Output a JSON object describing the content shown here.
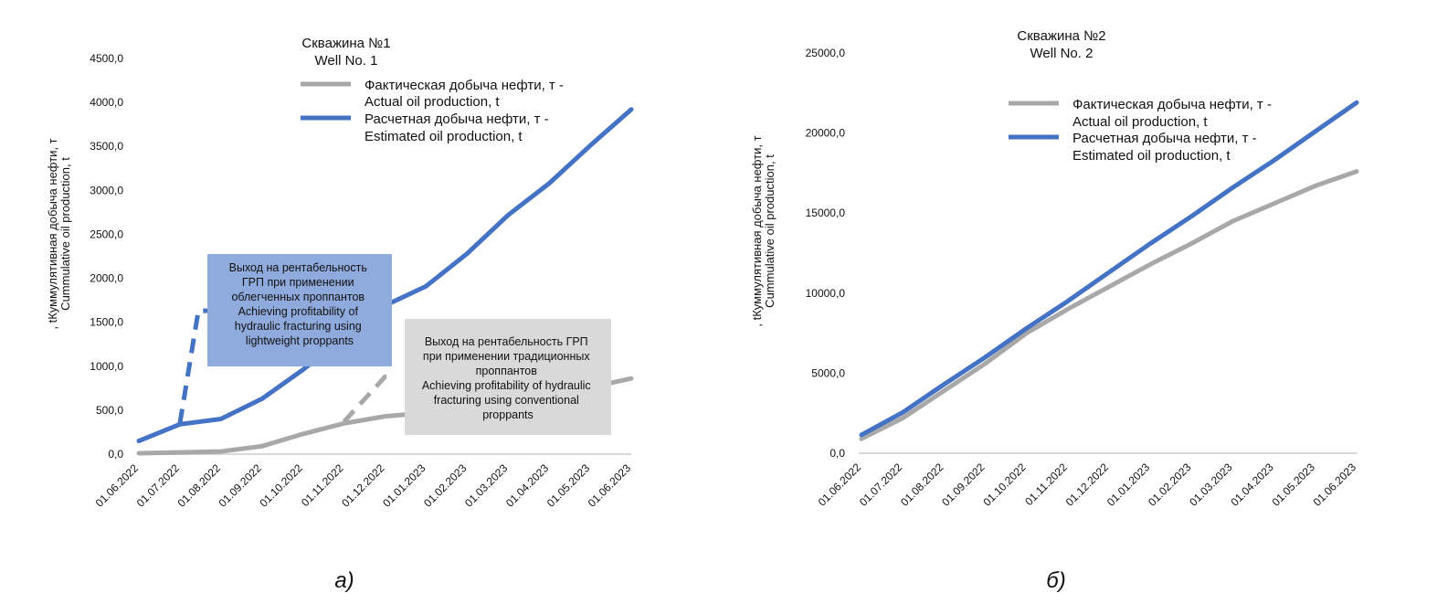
{
  "colors": {
    "actual": "#a8a8a8",
    "estimated": "#4472c4",
    "box_light": "#8faadc",
    "box_conv": "#d9d9d9",
    "baseline": "#d9d9d9"
  },
  "panel_a": {
    "caption": "а)",
    "title_line1": "Скважина №1",
    "title_line2": "Well No. 1",
    "legend": {
      "actual_line1": "Фактическая добыча нефти, т -",
      "actual_line2": "Actual oil production, t",
      "estimated_line1": "Расчетная добыча нефти, т -",
      "estimated_line2": "Estimated oil production, t"
    },
    "ylabel_line1": ", tКуммулятивная добыча нефти, т",
    "ylabel_line2": "Cummulative oil production, t",
    "annotation_light": [
      "Выход на рентабельность",
      "ГРП при применении",
      "облегченных проппантов",
      "Achieving profitability of",
      "hydraulic fracturing using",
      "lightweight proppants"
    ],
    "annotation_conv": [
      "Выход на рентабельность ГРП",
      "при применении традиционных",
      "проппантов",
      "Achieving profitability of hydraulic",
      "fracturing using conventional",
      "proppants"
    ]
  },
  "panel_b": {
    "caption": "б)",
    "title_line1": "Скважина №2",
    "title_line2": "Well No. 2",
    "legend": {
      "actual_line1": "Фактическая добыча нефти, т -",
      "actual_line2": "Actual oil production, t",
      "estimated_line1": "Расчетная добыча нефти, т -",
      "estimated_line2": "Estimated oil production, t"
    },
    "ylabel_line1": ", tКуммулятивная добыча нефти, т",
    "ylabel_line2": "Cummulative oil production, t"
  },
  "chart_data": [
    {
      "type": "line",
      "title": "Скважина №1 Well No. 1",
      "categories": [
        "01.06.2022",
        "01.07.2022",
        "01.08.2022",
        "01.09.2022",
        "01.10.2022",
        "01.11.2022",
        "01.12.2022",
        "01.01.2023",
        "01.02.2023",
        "01.03.2023",
        "01.04.2023",
        "01.05.2023",
        "01.06.2023"
      ],
      "y_ticks": [
        "0,0",
        "500,0",
        "1000,0",
        "1500,0",
        "2000,0",
        "2500,0",
        "3000,0",
        "3500,0",
        "4000,0",
        "4500,0"
      ],
      "ylim": [
        0,
        4500
      ],
      "grid": false,
      "legend_position": "top-right",
      "series": [
        {
          "name": "Фактическая добыча нефти, т - Actual oil production, t",
          "key": "actual",
          "values": [
            10,
            20,
            30,
            90,
            230,
            350,
            430,
            470,
            520,
            590,
            670,
            760,
            860
          ]
        },
        {
          "name": "Расчетная добыча нефти, т - Estimated oil production, t",
          "key": "estimated",
          "values": [
            150,
            340,
            400,
            630,
            960,
            1330,
            1690,
            1910,
            2280,
            2720,
            3080,
            3510,
            3920
          ]
        }
      ],
      "dashed_markers": [
        {
          "series": "estimated",
          "from": {
            "x": 1,
            "y": 350
          },
          "to": {
            "x": 1.45,
            "y": 1630
          }
        },
        {
          "series": "actual",
          "from": {
            "x": 5,
            "y": 370
          },
          "to": {
            "x": 6,
            "y": 880
          }
        }
      ]
    },
    {
      "type": "line",
      "title": "Скважина №2 Well No. 2",
      "categories": [
        "01.06.2022",
        "01.07.2022",
        "01.08.2022",
        "01.09.2022",
        "01.10.2022",
        "01.11.2022",
        "01.12.2022",
        "01.01.2023",
        "01.02.2023",
        "01.03.2023",
        "01.04.2023",
        "01.05.2023",
        "01.06.2023"
      ],
      "y_ticks": [
        "0,0",
        "5000,0",
        "10000,0",
        "15000,0",
        "20000,0",
        "25000,0"
      ],
      "ylim": [
        0,
        25000
      ],
      "grid": false,
      "legend_position": "top-right",
      "series": [
        {
          "name": "Фактическая добыча нефти, т - Actual oil production, t",
          "key": "actual",
          "values": [
            900,
            2200,
            3900,
            5600,
            7500,
            9000,
            10400,
            11800,
            13100,
            14500,
            15600,
            16700,
            17600
          ]
        },
        {
          "name": "Расчетная добыча нефти, т - Estimated oil production, t",
          "key": "estimated",
          "values": [
            1150,
            2550,
            4300,
            6000,
            7800,
            9500,
            11300,
            13100,
            14800,
            16600,
            18300,
            20100,
            21900
          ]
        }
      ]
    }
  ]
}
